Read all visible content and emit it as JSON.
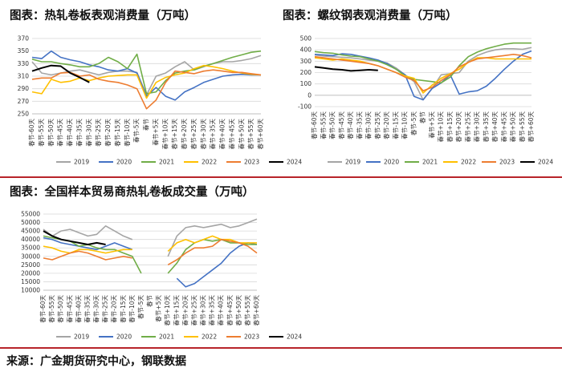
{
  "titles": {
    "chart1": "图表：热轧卷板表观消费量（万吨）",
    "chart2": "图表：螺纹钢表观消费量（万吨）",
    "chart3": "图表：全国样本贸易商热轧卷板成交量（万吨）"
  },
  "source": "来源：广金期货研究中心，钢联数据",
  "colors": {
    "2019": "#a5a5a5",
    "2020": "#4472c4",
    "2021": "#70ad47",
    "2022": "#ffc000",
    "2023": "#ed7d31",
    "2024": "#000000",
    "accent": "#b8242a"
  },
  "chart_data": [
    {
      "type": "line",
      "title": "图表：热轧卷板表观消费量（万吨）",
      "categories": [
        "春节-60天",
        "春节-55天",
        "春节-50天",
        "春节-45天",
        "春节-40天",
        "春节-35天",
        "春节-30天",
        "春节-25天",
        "春节-20天",
        "春节-15天",
        "春节-10天",
        "春节-5天",
        "春节",
        "春节+5天",
        "春节+10天",
        "春节+15天",
        "春节+20天",
        "春节+25天",
        "春节+30天",
        "春节+35天",
        "春节+40天",
        "春节+45天",
        "春节+50天",
        "春节+55天",
        "春节+60天"
      ],
      "ylim": [
        250,
        370
      ],
      "yticks": [
        250,
        270,
        290,
        310,
        330,
        350,
        370
      ],
      "legend": [
        "2019",
        "2020",
        "2021",
        "2022",
        "2023",
        "2024"
      ],
      "series": [
        {
          "name": "2019",
          "values": [
            333,
            315,
            312,
            315,
            318,
            320,
            316,
            312,
            316,
            318,
            318,
            316,
            280,
            310,
            315,
            325,
            333,
            320,
            325,
            330,
            333,
            333,
            335,
            338,
            343
          ]
        },
        {
          "name": "2020",
          "values": [
            340,
            338,
            350,
            340,
            336,
            333,
            328,
            325,
            320,
            318,
            322,
            315,
            278,
            292,
            278,
            272,
            285,
            292,
            300,
            305,
            310,
            312,
            313,
            312,
            312
          ]
        },
        {
          "name": "2021",
          "values": [
            337,
            333,
            333,
            330,
            328,
            325,
            325,
            330,
            340,
            333,
            322,
            345,
            282,
            285,
            303,
            315,
            318,
            320,
            326,
            330,
            335,
            340,
            344,
            348,
            350
          ]
        },
        {
          "name": "2022",
          "values": [
            285,
            282,
            305,
            300,
            302,
            307,
            303,
            307,
            310,
            311,
            312,
            312,
            275,
            300,
            308,
            312,
            315,
            322,
            327,
            325,
            322,
            318,
            315,
            313,
            312
          ]
        },
        {
          "name": "2023",
          "values": [
            305,
            307,
            307,
            315,
            316,
            310,
            312,
            305,
            302,
            300,
            296,
            290,
            258,
            272,
            300,
            318,
            316,
            314,
            318,
            320,
            318,
            316,
            316,
            314,
            312
          ]
        },
        {
          "name": "2024",
          "values": [
            318,
            323,
            327,
            326,
            315,
            308,
            300,
            null,
            null,
            null,
            null,
            null,
            null,
            null,
            null,
            null,
            null,
            null,
            null,
            null,
            null,
            null,
            null,
            null,
            null
          ]
        }
      ]
    },
    {
      "type": "line",
      "title": "图表：螺纹钢表观消费量（万吨）",
      "categories": [
        "春节-60天",
        "春节-55天",
        "春节-50天",
        "春节-45天",
        "春节-40天",
        "春节-35天",
        "春节-30天",
        "春节-25天",
        "春节-20天",
        "春节-15天",
        "春节-10天",
        "春节-5天",
        "春节",
        "春节+5天",
        "春节+10天",
        "春节+15天",
        "春节+20天",
        "春节+25天",
        "春节+30天",
        "春节+35天",
        "春节+40天",
        "春节+45天",
        "春节+50天",
        "春节+55天",
        "春节+60天"
      ],
      "ylim": [
        -100,
        500
      ],
      "yticks": [
        -100,
        0,
        100,
        200,
        300,
        400,
        500
      ],
      "legend": [
        "2019",
        "2020",
        "2021",
        "2022",
        "2023",
        "2024"
      ],
      "series": [
        {
          "name": "2019",
          "values": [
            355,
            345,
            340,
            335,
            330,
            320,
            310,
            300,
            285,
            240,
            180,
            120,
            -40,
            60,
            180,
            190,
            200,
            300,
            350,
            380,
            400,
            410,
            410,
            405,
            420
          ]
        },
        {
          "name": "2020",
          "values": [
            360,
            355,
            350,
            365,
            360,
            345,
            330,
            310,
            280,
            230,
            180,
            -10,
            -40,
            60,
            110,
            180,
            10,
            30,
            40,
            80,
            150,
            230,
            300,
            360,
            390
          ]
        },
        {
          "name": "2021",
          "values": [
            385,
            375,
            370,
            355,
            345,
            340,
            320,
            300,
            270,
            230,
            170,
            140,
            130,
            120,
            110,
            160,
            260,
            340,
            380,
            410,
            430,
            450,
            460,
            460,
            460
          ]
        },
        {
          "name": "2022",
          "values": [
            330,
            320,
            310,
            320,
            310,
            300,
            280,
            260,
            230,
            200,
            170,
            150,
            20,
            90,
            150,
            190,
            230,
            290,
            330,
            330,
            320,
            320,
            320,
            320,
            320
          ]
        },
        {
          "name": "2023",
          "values": [
            340,
            330,
            320,
            310,
            300,
            290,
            280,
            260,
            230,
            200,
            160,
            130,
            40,
            70,
            130,
            180,
            250,
            290,
            320,
            330,
            340,
            350,
            360,
            350,
            330
          ]
        },
        {
          "name": "2024",
          "values": [
            250,
            240,
            230,
            225,
            215,
            220,
            225,
            220,
            null,
            null,
            null,
            null,
            null,
            null,
            null,
            null,
            null,
            null,
            null,
            null,
            null,
            null,
            null,
            null,
            null
          ]
        }
      ]
    },
    {
      "type": "line",
      "title": "图表：全国样本贸易商热轧卷板成交量（万吨）",
      "categories": [
        "春节-60天",
        "春节-55天",
        "春节-50天",
        "春节-45天",
        "春节-40天",
        "春节-35天",
        "春节-30天",
        "春节-25天",
        "春节-20天",
        "春节-15天",
        "春节-10天",
        "春节-5天",
        "春节",
        "春节+5天",
        "春节+10天",
        "春节+15天",
        "春节+20天",
        "春节+25天",
        "春节+30天",
        "春节+35天",
        "春节+40天",
        "春节+45天",
        "春节+50天",
        "春节+55天",
        "春节+60天"
      ],
      "ylim": [
        10000,
        55000
      ],
      "yticks": [
        10000,
        15000,
        20000,
        25000,
        30000,
        35000,
        40000,
        45000,
        50000,
        55000
      ],
      "legend": [
        "2019",
        "2020",
        "2021",
        "2022",
        "2023",
        "2024"
      ],
      "series": [
        {
          "name": "2019",
          "values": [
            46000,
            42000,
            45000,
            46000,
            44000,
            42000,
            43000,
            48000,
            45000,
            42000,
            40000,
            null,
            null,
            null,
            30000,
            42000,
            47000,
            48000,
            47000,
            48000,
            49000,
            47000,
            48000,
            50000,
            52000
          ]
        },
        {
          "name": "2020",
          "values": [
            41000,
            40000,
            38000,
            37000,
            36000,
            35000,
            34000,
            36000,
            38000,
            36000,
            34000,
            null,
            null,
            null,
            null,
            17000,
            12000,
            14000,
            18000,
            22000,
            26000,
            32000,
            36000,
            38000,
            37000
          ]
        },
        {
          "name": "2021",
          "values": [
            42000,
            41000,
            40000,
            39000,
            36000,
            37000,
            35000,
            34000,
            34000,
            32000,
            30000,
            20000,
            null,
            null,
            20000,
            26000,
            34000,
            38000,
            40000,
            39000,
            40000,
            38000,
            38000,
            37000,
            37000
          ]
        },
        {
          "name": "2022",
          "values": [
            36000,
            35000,
            33000,
            32000,
            34000,
            34000,
            33000,
            32000,
            33000,
            34000,
            34000,
            null,
            null,
            null,
            33000,
            38000,
            40000,
            38000,
            40000,
            42000,
            40000,
            40000,
            38000,
            38000,
            38000
          ]
        },
        {
          "name": "2023",
          "values": [
            29000,
            28000,
            30000,
            32000,
            33000,
            32000,
            30000,
            28000,
            29000,
            30000,
            29000,
            null,
            null,
            null,
            25000,
            28000,
            32000,
            35000,
            35000,
            36000,
            40000,
            39000,
            38000,
            36000,
            32000
          ]
        },
        {
          "name": "2024",
          "values": [
            45000,
            42000,
            40000,
            39000,
            38000,
            37000,
            38000,
            37000,
            null,
            null,
            null,
            null,
            null,
            null,
            null,
            null,
            null,
            null,
            null,
            null,
            null,
            null,
            null,
            null,
            null
          ]
        }
      ]
    }
  ]
}
